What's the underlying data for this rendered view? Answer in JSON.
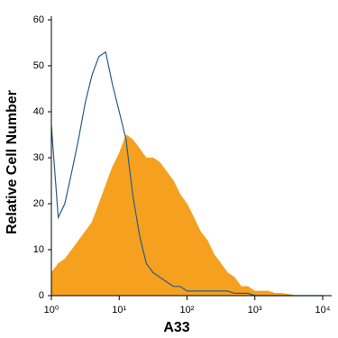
{
  "chart_data": {
    "type": "area",
    "xlabel": "A33",
    "ylabel": "Relative Cell Number",
    "xscale": "log",
    "x": [
      1,
      1.26,
      1.58,
      2,
      2.51,
      3.16,
      3.98,
      5.01,
      6.31,
      7.94,
      10,
      12.6,
      15.8,
      20,
      25.1,
      31.6,
      39.8,
      50.1,
      63.1,
      79.4,
      100,
      126,
      158,
      200,
      251,
      316,
      398,
      501,
      631,
      794,
      1000,
      1260,
      1580,
      2000,
      2510,
      3160,
      3980,
      5010,
      6310,
      7940,
      10000
    ],
    "series": [
      {
        "color": "#f5a11f",
        "fill": true,
        "values": [
          5,
          7,
          8,
          10,
          12,
          14,
          16,
          20,
          24,
          28,
          31,
          35,
          34,
          32,
          30,
          30,
          29,
          27,
          25,
          22,
          20,
          17,
          14,
          12,
          9,
          7,
          5,
          4,
          2,
          2,
          1,
          1,
          1,
          0.5,
          0.5,
          0.3,
          0,
          0,
          0,
          0,
          0
        ]
      },
      {
        "color": "#2a5d8a",
        "fill": false,
        "values": [
          37,
          17,
          20,
          27,
          34,
          42,
          48,
          52,
          53,
          46,
          40,
          34,
          22,
          13,
          7,
          5,
          4,
          3,
          2,
          2,
          1,
          1,
          1,
          1,
          1,
          1,
          1,
          0.5,
          0.5,
          0.5,
          0,
          0,
          0,
          0,
          0,
          0,
          0,
          0,
          0,
          0,
          0
        ]
      }
    ],
    "xlim": [
      1,
      10000
    ],
    "xticks": [
      {
        "value": 1,
        "label": "10⁰"
      },
      {
        "value": 10,
        "label": "10¹"
      },
      {
        "value": 100,
        "label": "10²"
      },
      {
        "value": 1000,
        "label": "10³"
      },
      {
        "value": 10000,
        "label": "10⁴"
      }
    ],
    "ylim": [
      0,
      60
    ],
    "yticks": [
      0,
      10,
      20,
      30,
      40,
      50,
      60
    ]
  }
}
